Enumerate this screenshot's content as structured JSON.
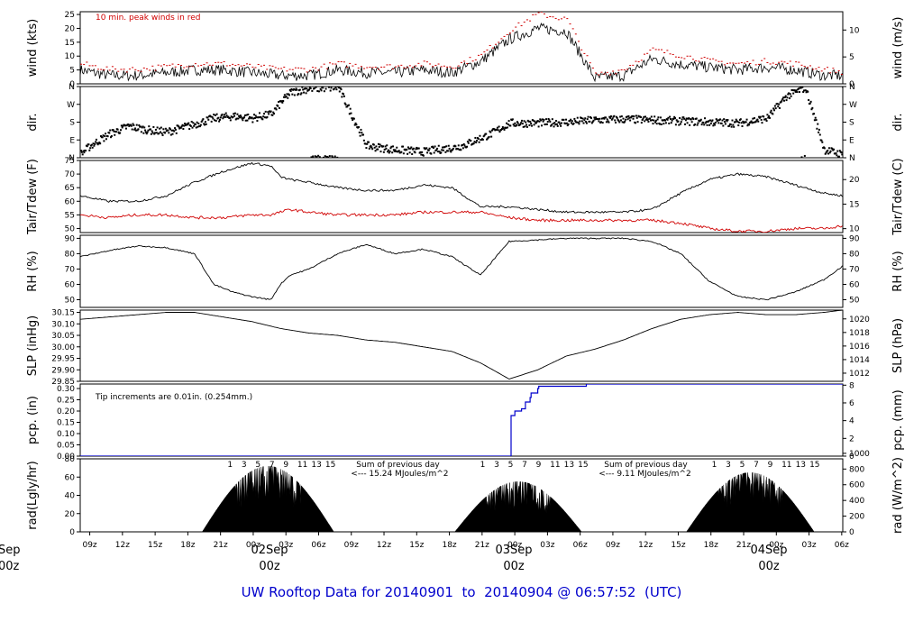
{
  "footer": {
    "prefix": "UW Rooftop Data for",
    "start": "20140901",
    "to": "to",
    "end": "20140904",
    "at": "@ 06:57:52",
    "tz": "(UTC)"
  },
  "colors": {
    "primary": "#000000",
    "peak": "#d00000",
    "precip": "#0000cc",
    "radiation_text": "#9900cc",
    "day_label": "#d00000"
  },
  "time_axis": {
    "hour_ticks": [
      "09z",
      "12z",
      "15z",
      "18z",
      "21z",
      "00z",
      "03z",
      "06z",
      "09z",
      "12z",
      "15z",
      "18z",
      "21z",
      "00z",
      "03z",
      "06z",
      "09z",
      "12z",
      "15z",
      "18z",
      "21z",
      "00z",
      "03z",
      "06z"
    ],
    "day_labels": [
      {
        "date": "Sep",
        "hour": "00z"
      },
      {
        "date": "02Sep",
        "hour": "00z"
      },
      {
        "date": "03Sep",
        "hour": "00z"
      },
      {
        "date": "04Sep",
        "hour": "00z"
      }
    ]
  },
  "chart_data": [
    {
      "id": "wind",
      "type": "line",
      "ylabel": "wind (kts)",
      "ylabel_right": "wind (m/s)",
      "ylim": [
        0,
        26
      ],
      "yticks": [
        0,
        5,
        10,
        15,
        20,
        25
      ],
      "right_ylim": [
        0,
        13.4
      ],
      "right_yticks": [
        0,
        5,
        10
      ],
      "annotation": "10 min. peak winds in red",
      "x_hours": [
        0,
        3,
        6,
        9,
        12,
        15,
        18,
        21,
        24,
        27,
        30,
        33,
        36,
        39,
        42,
        45,
        48,
        51,
        54,
        57,
        60,
        63,
        66,
        69,
        72,
        75,
        78,
        80
      ],
      "series": [
        {
          "values": [
            5,
            3,
            3,
            4,
            5,
            5,
            4,
            3,
            3,
            5,
            4,
            4,
            5,
            4,
            8,
            16,
            20,
            19,
            2,
            3,
            9,
            7,
            6,
            5,
            6,
            5,
            3,
            3
          ]
        },
        {
          "values": [
            7,
            5,
            5,
            6,
            7,
            7,
            6,
            5,
            5,
            7,
            6,
            6,
            7,
            6,
            10,
            19,
            25,
            23,
            3,
            5,
            12,
            10,
            8,
            7,
            8,
            7,
            5,
            4
          ]
        }
      ]
    },
    {
      "id": "dir",
      "type": "scatter",
      "ylabel": "dir.",
      "ylabel_right": "dir.",
      "ylim": [
        0,
        360
      ],
      "ytick_labels": [
        "N",
        "E",
        "S",
        "W",
        "N"
      ],
      "x_hours": [
        0,
        1,
        3,
        5,
        7,
        9,
        12,
        14,
        16,
        18,
        20,
        21,
        22,
        24,
        27,
        30,
        33,
        36,
        38,
        39,
        40,
        42,
        43,
        45,
        48,
        51,
        54,
        57,
        60,
        63,
        66,
        69,
        72,
        74,
        76,
        78,
        80
      ],
      "values": [
        20,
        60,
        120,
        160,
        140,
        130,
        170,
        200,
        210,
        200,
        220,
        280,
        330,
        350,
        355,
        60,
        40,
        30,
        45,
        50,
        60,
        100,
        120,
        175,
        175,
        180,
        190,
        195,
        190,
        185,
        180,
        175,
        200,
        310,
        355,
        40,
        15
      ]
    },
    {
      "id": "tair_tdew",
      "type": "line",
      "ylabel": "Tair/Tdew (F)",
      "ylabel_right": "Tair/Tdew (C)",
      "ylim": [
        48.5,
        75
      ],
      "yticks": [
        50,
        55,
        60,
        65,
        70,
        75
      ],
      "right_ylim": [
        9.2,
        23.9
      ],
      "right_yticks": [
        10,
        15,
        20
      ],
      "x_hours": [
        0,
        3,
        6,
        9,
        12,
        15,
        18,
        20,
        21,
        22,
        24,
        27,
        30,
        33,
        36,
        39,
        42,
        45,
        48,
        51,
        54,
        57,
        60,
        63,
        66,
        69,
        72,
        75,
        78,
        80
      ],
      "series": [
        {
          "values": [
            62,
            60,
            60,
            62,
            67,
            71,
            74,
            73,
            69,
            68,
            67,
            65,
            64,
            64,
            66,
            65,
            58,
            58,
            57,
            56,
            56,
            56,
            57,
            63,
            68,
            70,
            69,
            66,
            63,
            62
          ]
        },
        {
          "values": [
            55,
            54,
            55,
            55,
            54,
            54,
            55,
            55,
            56,
            57,
            56,
            55,
            55,
            55,
            56,
            56,
            56,
            54,
            53,
            53,
            53,
            53,
            53,
            52,
            50,
            49,
            49,
            50,
            50,
            51
          ]
        }
      ]
    },
    {
      "id": "rh",
      "type": "line",
      "ylabel": "RH (%)",
      "ylabel_right": "RH (%)",
      "ylim": [
        45,
        92
      ],
      "yticks": [
        50,
        60,
        70,
        80,
        90
      ],
      "x_hours": [
        0,
        3,
        6,
        9,
        12,
        14,
        16,
        18,
        20,
        21,
        22,
        24,
        27,
        30,
        33,
        36,
        39,
        42,
        45,
        48,
        51,
        54,
        57,
        60,
        63,
        66,
        69,
        72,
        75,
        78,
        80
      ],
      "series": [
        {
          "values": [
            78,
            82,
            85,
            84,
            80,
            60,
            55,
            52,
            50,
            60,
            66,
            70,
            80,
            86,
            80,
            83,
            78,
            66,
            88,
            89,
            90,
            90,
            90,
            88,
            80,
            62,
            52,
            50,
            55,
            63,
            72
          ]
        }
      ]
    },
    {
      "id": "slp",
      "type": "line",
      "ylabel": "SLP (inHg)",
      "ylabel_right": "SLP (hPa)",
      "ylim": [
        29.85,
        30.16
      ],
      "yticks": [
        29.85,
        29.9,
        29.95,
        30.0,
        30.05,
        30.1,
        30.15
      ],
      "right_ylim": [
        1010.8,
        1021.3
      ],
      "right_yticks": [
        1012,
        1014,
        1016,
        1018,
        1020
      ],
      "x_hours": [
        0,
        3,
        6,
        9,
        12,
        15,
        18,
        21,
        24,
        27,
        30,
        33,
        36,
        39,
        42,
        45,
        48,
        51,
        54,
        57,
        60,
        63,
        66,
        69,
        72,
        75,
        78,
        80
      ],
      "series": [
        {
          "values": [
            30.12,
            30.13,
            30.14,
            30.15,
            30.15,
            30.13,
            30.11,
            30.08,
            30.06,
            30.05,
            30.03,
            30.02,
            30.0,
            29.98,
            29.93,
            29.86,
            29.9,
            29.96,
            29.99,
            30.03,
            30.08,
            30.12,
            30.14,
            30.15,
            30.14,
            30.14,
            30.15,
            30.16
          ]
        }
      ]
    },
    {
      "id": "pcp",
      "type": "line",
      "ylabel": "pcp. (in)",
      "ylabel_right": "pcp. (mm)",
      "ylim": [
        0,
        0.32
      ],
      "yticks": [
        0.0,
        0.05,
        0.1,
        0.15,
        0.2,
        0.25,
        0.3
      ],
      "right_ylim": [
        0,
        8.13
      ],
      "right_yticks": [
        0,
        2,
        4,
        6,
        8
      ],
      "annotation": "Tip increments are 0.01in. (0.254mm.)",
      "x_hours": [
        0,
        45,
        45.2,
        45.6,
        46.3,
        46.7,
        47.2,
        47.3,
        48,
        48.1,
        48.8,
        53,
        53.1,
        80
      ],
      "series": [
        {
          "values": [
            0,
            0,
            0.18,
            0.2,
            0.21,
            0.24,
            0.26,
            0.28,
            0.3,
            0.31,
            0.31,
            0.31,
            0.32,
            0.32
          ]
        }
      ]
    },
    {
      "id": "rad",
      "type": "area",
      "ylabel": "rad(Lgly/hr)",
      "ylabel_right": "rad (W/m^2)",
      "ylim": [
        0,
        80
      ],
      "yticks": [
        0,
        20,
        40,
        60,
        80
      ],
      "right_ylim": [
        0,
        930
      ],
      "right_yticks": [
        0,
        200,
        400,
        600,
        800,
        1000
      ],
      "daylight_hours": [
        [
          12.8,
          26.6
        ],
        [
          39.3,
          52.6
        ],
        [
          63.6,
          77.0
        ]
      ],
      "peaks": [
        72,
        55,
        65
      ],
      "solar_hour_marks": [
        "1",
        "3",
        "5",
        "7",
        "9",
        "11",
        "13",
        "15"
      ],
      "day_summaries": [
        {
          "title": "Sum of previous day",
          "value": "<--- 15.24 MJoules/m^2"
        },
        {
          "title": "Sum of previous day",
          "value": "<--- 9.11 MJoules/m^2"
        }
      ]
    }
  ]
}
